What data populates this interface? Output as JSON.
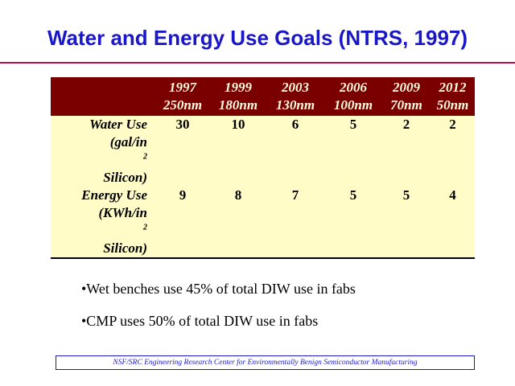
{
  "slide": {
    "title": "Water and Energy Use Goals (NTRS, 1997)",
    "accent_color": "#b3124a",
    "title_color": "#1a17c9"
  },
  "table": {
    "header_color": "#7a0000",
    "body_color": "#fffcc8",
    "columns": [
      {
        "year": "1997",
        "node": "250nm"
      },
      {
        "year": "1999",
        "node": "180nm"
      },
      {
        "year": "2003",
        "node": "130nm"
      },
      {
        "year": "2006",
        "node": "100nm"
      },
      {
        "year": "2009",
        "node": "70nm"
      },
      {
        "year": "2012",
        "node": "50nm"
      }
    ],
    "rows": [
      {
        "label_line1": "Water Use",
        "label_line2": "(gal/in",
        "label_sup": "2",
        "label_line3": "Silicon)",
        "values": [
          "30",
          "10",
          "6",
          "5",
          "2",
          "2"
        ]
      },
      {
        "label_line1": "Energy Use",
        "label_line2": "(KWh/in",
        "label_sup": "2",
        "label_line3": "Silicon)",
        "values": [
          "9",
          "8",
          "7",
          "5",
          "5",
          "4"
        ]
      }
    ]
  },
  "bullets": [
    "•Wet benches use 45% of total DIW use in fabs",
    "•CMP uses 50% of total DIW use in fabs"
  ],
  "footer": {
    "text": "NSF/SRC Engineering Research Center for Environmentally Benign Semiconductor Manufacturing"
  }
}
